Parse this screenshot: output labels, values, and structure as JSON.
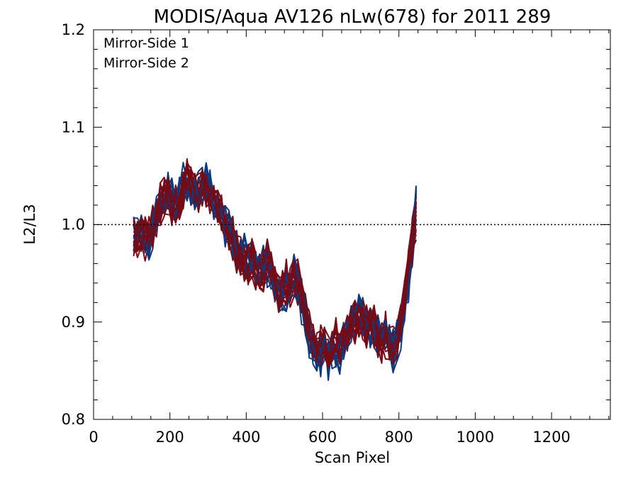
{
  "chart_data": {
    "type": "line",
    "title": "MODIS/Aqua AV126 nLw(678) for 2011 289",
    "xlabel": "Scan Pixel",
    "ylabel": "L2/L3",
    "xlim": [
      0,
      1354
    ],
    "ylim": [
      0.8,
      1.2
    ],
    "x_ticks": [
      0,
      200,
      400,
      600,
      800,
      1000,
      1200
    ],
    "x_tick_labels": [
      "0",
      "200",
      "400",
      "600",
      "800",
      "1000",
      "1200"
    ],
    "y_ticks": [
      0.8,
      0.9,
      1.0,
      1.1,
      1.2
    ],
    "y_tick_labels": [
      "0.8",
      "0.9",
      "1.0",
      "1.1",
      "1.2"
    ],
    "reference_line": {
      "y": 1.0,
      "style": "dotted"
    },
    "grid": false,
    "legend_position": "top-left",
    "x_start": 105,
    "x_step": 10,
    "colors": {
      "Mirror-Side 1": "#0d3a7c",
      "Mirror-Side 2": "#780a14"
    },
    "series": [
      {
        "name": "Mirror-Side 1",
        "color": "#0d3a7c",
        "values": [
          0.99,
          0.985,
          0.99,
          0.985,
          0.985,
          0.995,
          1.01,
          1.02,
          1.03,
          1.035,
          1.025,
          1.015,
          1.03,
          1.04,
          1.045,
          1.04,
          1.035,
          1.04,
          1.045,
          1.04,
          1.035,
          1.025,
          1.02,
          1.01,
          1.0,
          0.995,
          0.985,
          0.975,
          0.97,
          0.965,
          0.96,
          0.96,
          0.955,
          0.95,
          0.955,
          0.96,
          0.95,
          0.935,
          0.93,
          0.93,
          0.935,
          0.93,
          0.95,
          0.94,
          0.92,
          0.905,
          0.885,
          0.875,
          0.87,
          0.87,
          0.875,
          0.865,
          0.87,
          0.875,
          0.865,
          0.88,
          0.885,
          0.895,
          0.905,
          0.91,
          0.905,
          0.9,
          0.895,
          0.89,
          0.885,
          0.885,
          0.89,
          0.885,
          0.87,
          0.88,
          0.895,
          0.915,
          0.94,
          0.98,
          1.01
        ]
      },
      {
        "name": "Mirror-Side 2",
        "color": "#780a14",
        "values": [
          0.985,
          0.985,
          0.99,
          0.985,
          0.99,
          1.0,
          1.01,
          1.02,
          1.025,
          1.03,
          1.02,
          1.02,
          1.025,
          1.035,
          1.045,
          1.04,
          1.035,
          1.035,
          1.04,
          1.035,
          1.03,
          1.025,
          1.02,
          1.01,
          1.0,
          0.995,
          0.985,
          0.975,
          0.965,
          0.96,
          0.96,
          0.965,
          0.955,
          0.95,
          0.95,
          0.96,
          0.955,
          0.94,
          0.93,
          0.935,
          0.94,
          0.935,
          0.945,
          0.94,
          0.925,
          0.905,
          0.89,
          0.875,
          0.87,
          0.875,
          0.88,
          0.87,
          0.875,
          0.88,
          0.87,
          0.885,
          0.89,
          0.9,
          0.9,
          0.905,
          0.9,
          0.895,
          0.9,
          0.895,
          0.885,
          0.88,
          0.885,
          0.88,
          0.875,
          0.885,
          0.9,
          0.925,
          0.95,
          0.985,
          1.01
        ]
      }
    ]
  }
}
